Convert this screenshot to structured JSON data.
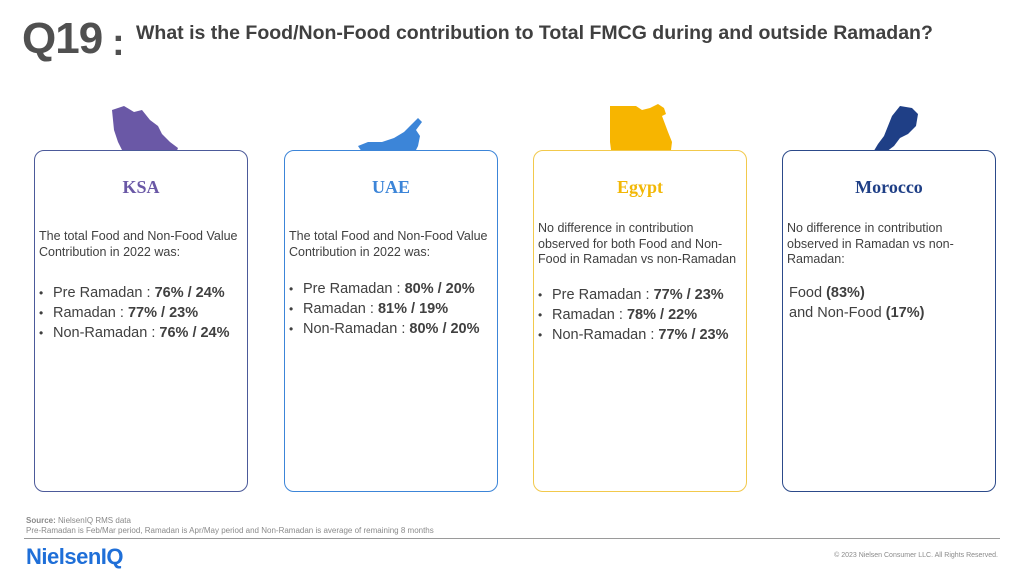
{
  "header": {
    "number": "Q19",
    "colon": ":",
    "question": "What is the Food/Non-Food contribution to Total FMCG during and outside Ramadan?"
  },
  "cards": [
    {
      "title": "KSA",
      "title_color": "#6a58a6",
      "map_color": "#6a58a6",
      "description": "The total Food and Non-Food Value Contribution in 2022 was:",
      "items": [
        {
          "label": "Pre Ramadan : ",
          "value": "76%  / 24%"
        },
        {
          "label": "Ramadan : ",
          "value": "77%  /  23%"
        },
        {
          "label": "Non-Ramadan : ",
          "value": "76%  / 24%"
        }
      ]
    },
    {
      "title": "UAE",
      "title_color": "#3c85d8",
      "map_color": "#3c85d8",
      "description": "The total Food and Non-Food Value Contribution in 2022 was:",
      "items": [
        {
          "label": "Pre Ramadan : ",
          "value": "80%  / 20%"
        },
        {
          "label": "Ramadan : ",
          "value": "81%  /  19%"
        },
        {
          "label": "Non-Ramadan : ",
          "value": "80%  / 20%"
        }
      ]
    },
    {
      "title": "Egypt",
      "title_color": "#f2b705",
      "map_color": "#f7b500",
      "description": "No difference in contribution observed for both Food and Non-Food in Ramadan vs non-Ramadan",
      "items": [
        {
          "label": "Pre Ramadan : ",
          "value": "77%  / 23%"
        },
        {
          "label": "Ramadan : ",
          "value": "78%  /  22%"
        },
        {
          "label": "Non-Ramadan : ",
          "value": "77%  / 23%"
        }
      ]
    },
    {
      "title": "Morocco",
      "title_color": "#1f3f86",
      "map_color": "#1f3f86",
      "description": "No difference in contribution observed in Ramadan vs non-Ramadan:",
      "lines": [
        {
          "label": "Food ",
          "value": "(83%)"
        },
        {
          "label": "and Non-Food ",
          "value": "(17%)"
        }
      ]
    }
  ],
  "footer": {
    "source_label": "Source:",
    "source_text": " NielsenIQ RMS data",
    "note": " Pre-Ramadan  is Feb/Mar period, Ramadan is Apr/May period and Non-Ramadan is average of remaining 8 months",
    "logo": "NielsenIQ",
    "copyright": "© 2023 Nielsen Consumer LLC. All Rights Reserved."
  }
}
